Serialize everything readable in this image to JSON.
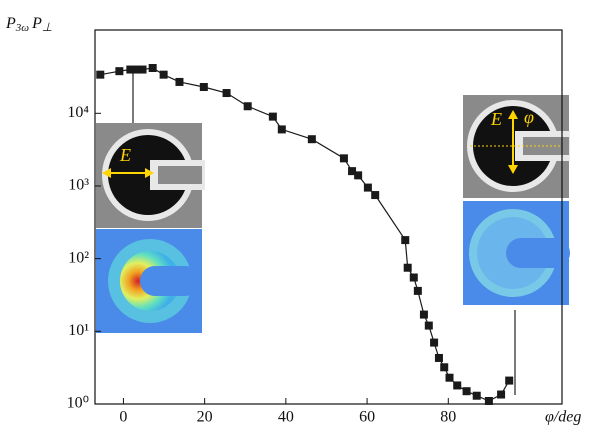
{
  "chart_data": {
    "type": "line",
    "log_y": true,
    "y_label_parts": [
      "P",
      "3ω",
      "P",
      "⊥"
    ],
    "x_label": "φ/deg",
    "annotations": [
      "E",
      "E",
      "φ"
    ],
    "xlim": [
      -7,
      108
    ],
    "xticks": [
      0,
      20,
      40,
      60,
      80
    ],
    "ylim": [
      1,
      140000
    ],
    "yticks": [
      {
        "value": 1,
        "label": "10⁰"
      },
      {
        "value": 10,
        "label": "10¹"
      },
      {
        "value": 100,
        "label": "10²"
      },
      {
        "value": 1000,
        "label": "10³"
      },
      {
        "value": 10000,
        "label": "10⁴"
      }
    ],
    "series": [
      {
        "color": "#1a1a1a",
        "x": [
          -5.7,
          -1,
          1.7,
          3.2,
          4.7,
          7.2,
          9.9,
          13.8,
          19.8,
          25.4,
          30.6,
          36.8,
          39,
          46.4,
          54.3,
          56.3,
          57.8,
          60.2,
          62,
          69.4,
          70,
          71.5,
          72.5,
          74,
          75.2,
          76.5,
          77.7,
          79,
          80.3,
          82.2,
          84.5,
          87,
          90,
          93,
          95
        ],
        "values": [
          34000,
          38000,
          40000,
          40000,
          40000,
          42000,
          34000,
          27000,
          23000,
          19000,
          12500,
          9000,
          6000,
          4400,
          2400,
          1600,
          1400,
          950,
          750,
          180,
          75,
          55,
          36,
          17,
          12,
          7,
          4.3,
          3.2,
          2.3,
          1.8,
          1.5,
          1.3,
          1.1,
          1.35,
          2.1
        ]
      }
    ]
  }
}
